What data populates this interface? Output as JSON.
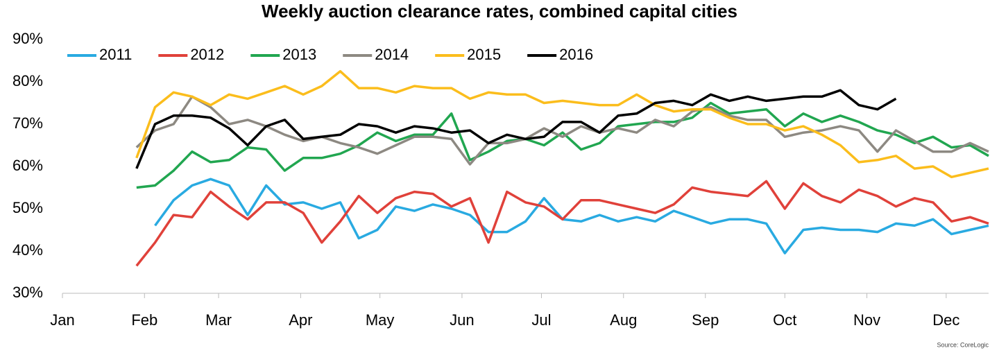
{
  "chart_data": {
    "type": "line",
    "title": "Weekly auction clearance rates, combined capital cities",
    "source": "Source: CoreLogic",
    "x": [
      4,
      5,
      6,
      7,
      8,
      9,
      10,
      11,
      12,
      13,
      14,
      15,
      16,
      17,
      18,
      19,
      20,
      21,
      22,
      23,
      24,
      25,
      26,
      27,
      28,
      29,
      30,
      31,
      32,
      33,
      34,
      35,
      36,
      37,
      38,
      39,
      40,
      41,
      42,
      43,
      44,
      45,
      46,
      47,
      48,
      49,
      50
    ],
    "xlim": [
      0,
      50
    ],
    "xticks": [
      {
        "value": 0,
        "label": "Jan"
      },
      {
        "value": 4.43,
        "label": "Feb"
      },
      {
        "value": 8.43,
        "label": "Mar"
      },
      {
        "value": 12.86,
        "label": "Apr"
      },
      {
        "value": 17.14,
        "label": "May"
      },
      {
        "value": 21.57,
        "label": "Jun"
      },
      {
        "value": 25.86,
        "label": "Jul"
      },
      {
        "value": 30.29,
        "label": "Aug"
      },
      {
        "value": 34.71,
        "label": "Sep"
      },
      {
        "value": 39,
        "label": "Oct"
      },
      {
        "value": 43.43,
        "label": "Nov"
      },
      {
        "value": 47.71,
        "label": "Dec"
      }
    ],
    "ylim": [
      30,
      90
    ],
    "yticks": [
      {
        "value": 30,
        "label": "30%"
      },
      {
        "value": 40,
        "label": "40%"
      },
      {
        "value": 50,
        "label": "50%"
      },
      {
        "value": 60,
        "label": "60%"
      },
      {
        "value": 70,
        "label": "70%"
      },
      {
        "value": 80,
        "label": "80%"
      },
      {
        "value": 90,
        "label": "90%"
      }
    ],
    "grid": false,
    "legend": "top",
    "series": [
      {
        "name": "2011",
        "color": "#29aae1",
        "values": [
          null,
          46,
          52,
          55.5,
          57,
          55.5,
          48.5,
          55.5,
          51,
          51.5,
          50,
          51.5,
          43,
          45,
          50.5,
          49.5,
          51,
          50,
          48.5,
          44.5,
          44.5,
          47,
          52.5,
          47.5,
          47,
          48.5,
          47,
          48,
          47,
          49.5,
          48,
          46.5,
          47.5,
          47.5,
          46.5,
          39.5,
          45,
          45.5,
          45,
          45,
          44.5,
          46.5,
          46,
          47.5,
          44,
          45,
          46
        ]
      },
      {
        "name": "2012",
        "color": "#e0413a",
        "values": [
          36.5,
          42,
          48.5,
          48,
          54,
          50.5,
          47.5,
          51.5,
          51.5,
          49,
          42,
          47,
          53,
          49,
          52.5,
          54,
          53.5,
          50.5,
          52.5,
          42,
          54,
          51.5,
          50.5,
          47.5,
          52,
          52,
          51,
          50,
          49,
          51,
          55,
          54,
          53.5,
          53,
          56.5,
          50,
          56,
          53,
          51.5,
          54.5,
          53,
          50.5,
          52.5,
          51.5,
          47,
          48,
          46.5
        ]
      },
      {
        "name": "2013",
        "color": "#21a650",
        "values": [
          55,
          55.5,
          59,
          63.5,
          61,
          61.5,
          64.5,
          64,
          59,
          62,
          62,
          63,
          65,
          68,
          66,
          67.5,
          67.5,
          72.5,
          61.5,
          63.5,
          66,
          66.5,
          65,
          68,
          64,
          65.5,
          69.5,
          70,
          70.5,
          70.5,
          71.5,
          75,
          72.5,
          73,
          73.5,
          69.5,
          72.5,
          70.5,
          72,
          70.5,
          68.5,
          67.5,
          65.5,
          67,
          64.5,
          65,
          62.5
        ]
      },
      {
        "name": "2014",
        "color": "#8d8982",
        "values": [
          64.5,
          68.5,
          70,
          76.5,
          74,
          70,
          71,
          69.5,
          67.5,
          66,
          67,
          65.5,
          64.5,
          63,
          65,
          67,
          67,
          66.5,
          60.5,
          65.5,
          65.5,
          66.5,
          69,
          67,
          69.5,
          68,
          69,
          68,
          71,
          69.5,
          73,
          74,
          72,
          71,
          71,
          67,
          68,
          68.5,
          69.5,
          68.5,
          63.5,
          68.5,
          66,
          63.5,
          63.5,
          65.5,
          63.5
        ]
      },
      {
        "name": "2015",
        "color": "#fbbd1c",
        "values": [
          62,
          74,
          77.5,
          76.5,
          74.5,
          77,
          76,
          77.5,
          79,
          77,
          79,
          82.5,
          78.5,
          78.5,
          77.5,
          79,
          78.5,
          78.5,
          76,
          77.5,
          77,
          77,
          75,
          75.5,
          75,
          74.5,
          74.5,
          77,
          74.5,
          73,
          73.5,
          73.5,
          71.5,
          70,
          70,
          68.5,
          69.5,
          67.5,
          65,
          61,
          61.5,
          62.5,
          59.5,
          60,
          57.5,
          58.5,
          59.5
        ]
      },
      {
        "name": "2016",
        "color": "#000000",
        "values": [
          59.5,
          70,
          72,
          72,
          71.5,
          69,
          65,
          69.5,
          71,
          66.5,
          67,
          67.5,
          70,
          69.5,
          68,
          69.5,
          69,
          68,
          68.5,
          65.5,
          67.5,
          66.5,
          67,
          70.5,
          70.5,
          68,
          72,
          72.5,
          75,
          75.5,
          74.5,
          77,
          75.5,
          76.5,
          75.5,
          76,
          76.5,
          76.5,
          78,
          74.5,
          73.5,
          76,
          null,
          null,
          null,
          null,
          null
        ]
      }
    ]
  }
}
